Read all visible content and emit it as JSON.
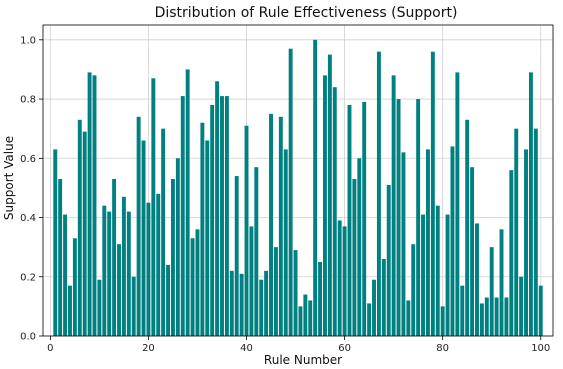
{
  "chart_data": {
    "type": "bar",
    "title": "Distribution of Rule Effectiveness (Support)",
    "xlabel": "Rule Number",
    "ylabel": "Support Value",
    "xlim": [
      -1.5,
      102.5
    ],
    "ylim": [
      0,
      1.05
    ],
    "xticks": [
      0,
      20,
      40,
      60,
      80,
      100
    ],
    "yticks": [
      0.0,
      0.2,
      0.4,
      0.6,
      0.8,
      1.0
    ],
    "xtick_labels": [
      "0",
      "20",
      "40",
      "60",
      "80",
      "100"
    ],
    "ytick_labels": [
      "0.0",
      "0.2",
      "0.4",
      "0.6",
      "0.8",
      "1.0"
    ],
    "grid": true,
    "bar_color": "#008080",
    "x": [
      1,
      2,
      3,
      4,
      5,
      6,
      7,
      8,
      9,
      10,
      11,
      12,
      13,
      14,
      15,
      16,
      17,
      18,
      19,
      20,
      21,
      22,
      23,
      24,
      25,
      26,
      27,
      28,
      29,
      30,
      31,
      32,
      33,
      34,
      35,
      36,
      37,
      38,
      39,
      40,
      41,
      42,
      43,
      44,
      45,
      46,
      47,
      48,
      49,
      50,
      51,
      52,
      53,
      54,
      55,
      56,
      57,
      58,
      59,
      60,
      61,
      62,
      63,
      64,
      65,
      66,
      67,
      68,
      69,
      70,
      71,
      72,
      73,
      74,
      75,
      76,
      77,
      78,
      79,
      80,
      81,
      82,
      83,
      84,
      85,
      86,
      87,
      88,
      89,
      90,
      91,
      92,
      93,
      94,
      95,
      96,
      97,
      98,
      99,
      100
    ],
    "values": [
      0.63,
      0.53,
      0.41,
      0.17,
      0.33,
      0.73,
      0.69,
      0.89,
      0.88,
      0.19,
      0.44,
      0.42,
      0.53,
      0.31,
      0.47,
      0.42,
      0.2,
      0.74,
      0.66,
      0.45,
      0.87,
      0.48,
      0.7,
      0.24,
      0.53,
      0.6,
      0.81,
      0.9,
      0.33,
      0.36,
      0.72,
      0.66,
      0.78,
      0.86,
      0.81,
      0.81,
      0.22,
      0.54,
      0.21,
      0.71,
      0.37,
      0.57,
      0.19,
      0.22,
      0.75,
      0.3,
      0.74,
      0.63,
      0.97,
      0.29,
      0.1,
      0.14,
      0.12,
      1.0,
      0.25,
      0.88,
      0.95,
      0.84,
      0.39,
      0.37,
      0.78,
      0.53,
      0.6,
      0.79,
      0.11,
      0.19,
      0.96,
      0.26,
      0.51,
      0.88,
      0.8,
      0.62,
      0.12,
      0.31,
      0.8,
      0.41,
      0.63,
      0.96,
      0.44,
      0.1,
      0.41,
      0.64,
      0.89,
      0.17,
      0.73,
      0.57,
      0.38,
      0.11,
      0.13,
      0.3,
      0.13,
      0.36,
      0.13,
      0.56,
      0.7,
      0.2,
      0.63,
      0.89,
      0.7,
      0.17
    ]
  }
}
